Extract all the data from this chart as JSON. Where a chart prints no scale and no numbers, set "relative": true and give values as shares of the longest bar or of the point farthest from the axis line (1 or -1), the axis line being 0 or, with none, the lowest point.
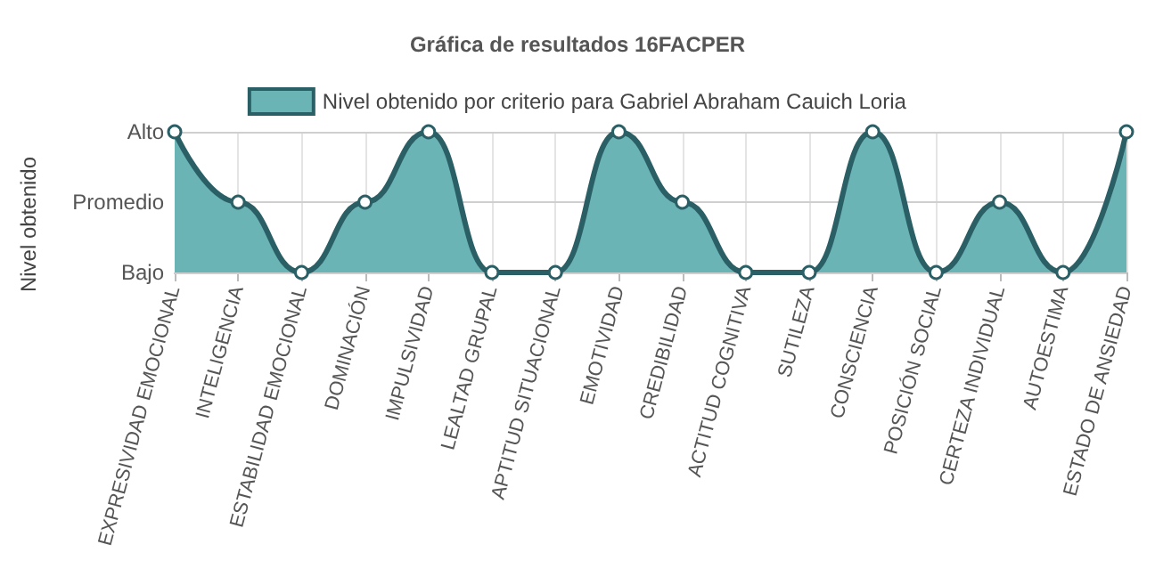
{
  "chart_data": {
    "type": "area",
    "title": "Gráfica de resultados 16FACPER",
    "ylabel": "Nivel obtenido",
    "relative": true,
    "categories": [
      "EXPRESIVIDAD EMOCIONAL",
      "INTELIGENCIA",
      "ESTABILIDAD EMOCIONAL",
      "DOMINACIÓN",
      "IMPULSIVIDAD",
      "LEALTAD GRUPAL",
      "APTITUD SITUACIONAL",
      "EMOTIVIDAD",
      "CREDIBILIDAD",
      "ACTITUD COGNITIVA",
      "SUTILEZA",
      "CONSCIENCIA",
      "POSICIÓN SOCIAL",
      "CERTEZA INDIVIDUAL",
      "AUTOESTIMA",
      "ESTADO DE ANSIEDAD"
    ],
    "series": [
      {
        "name": "Nivel obtenido por criterio para Gabriel Abraham Cauich Loria",
        "color": "#2b5f66",
        "values": [
          1,
          0.5,
          0,
          0.5,
          1,
          0,
          0,
          1,
          0.5,
          0,
          0,
          1,
          0,
          0.5,
          0,
          1
        ]
      }
    ],
    "ref_lines": [
      {
        "axis": "y",
        "value": 1,
        "label": "Alto",
        "color": "#cfcfcf"
      },
      {
        "axis": "y",
        "value": 0.5,
        "label": "Promedio",
        "color": "#cfcfcf"
      },
      {
        "axis": "y",
        "value": 0,
        "label": "Bajo",
        "color": "#cfcfcf"
      }
    ],
    "grid": "x",
    "legend": "top",
    "marker": "circle",
    "line_style": "solid"
  }
}
